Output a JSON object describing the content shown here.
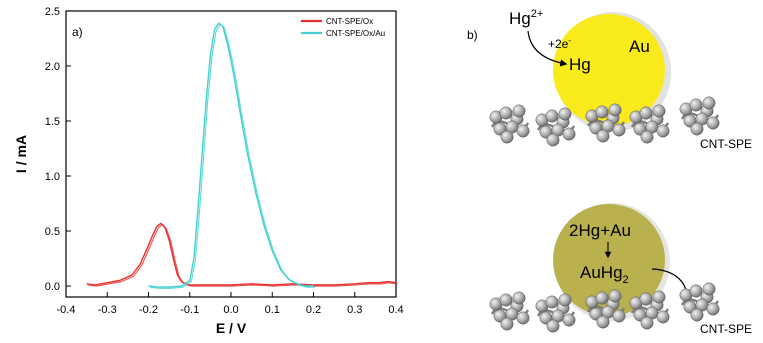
{
  "chart_data": {
    "type": "line",
    "panel_label": "a)",
    "xlabel": "E / V",
    "ylabel": "I / mA",
    "xlim": [
      -0.4,
      0.4
    ],
    "ylim": [
      -0.1,
      2.5
    ],
    "x_ticks": [
      "-0.4",
      "-0.3",
      "-0.2",
      "-0.1",
      "0.0",
      "0.1",
      "0.2",
      "0.3",
      "0.4"
    ],
    "y_ticks": [
      "0.0",
      "0.5",
      "1.0",
      "1.5",
      "2.0",
      "2.5"
    ],
    "grid": false,
    "legend_position": "top-right",
    "series": [
      {
        "name": "CNT-SPE/Ox",
        "color": "#e8302e",
        "x": [
          -0.35,
          -0.33,
          -0.3,
          -0.27,
          -0.24,
          -0.22,
          -0.2,
          -0.19,
          -0.18,
          -0.17,
          -0.16,
          -0.15,
          -0.14,
          -0.13,
          -0.12,
          -0.11,
          -0.1,
          -0.05,
          0.0,
          0.05,
          0.1,
          0.15,
          0.2,
          0.25,
          0.3,
          0.33,
          0.36,
          0.38,
          0.4
        ],
        "y": [
          0.02,
          0.01,
          0.03,
          0.05,
          0.1,
          0.2,
          0.37,
          0.46,
          0.54,
          0.57,
          0.53,
          0.42,
          0.25,
          0.1,
          0.04,
          0.02,
          0.01,
          0.01,
          0.01,
          0.02,
          0.01,
          0.02,
          0.01,
          0.01,
          0.02,
          0.03,
          0.03,
          0.04,
          0.03
        ]
      },
      {
        "name": "CNT-SPE/Ox/Au",
        "color": "#45d0d2",
        "x": [
          -0.2,
          -0.18,
          -0.15,
          -0.12,
          -0.1,
          -0.09,
          -0.08,
          -0.07,
          -0.06,
          -0.05,
          -0.04,
          -0.03,
          -0.02,
          -0.01,
          0.0,
          0.01,
          0.02,
          0.04,
          0.06,
          0.08,
          0.1,
          0.12,
          0.14,
          0.16,
          0.18,
          0.2
        ],
        "y": [
          0.0,
          -0.01,
          -0.01,
          0.0,
          0.05,
          0.25,
          0.7,
          1.2,
          1.7,
          2.1,
          2.33,
          2.39,
          2.36,
          2.22,
          2.05,
          1.85,
          1.62,
          1.2,
          0.85,
          0.55,
          0.32,
          0.15,
          0.06,
          0.02,
          0.0,
          0.0
        ]
      }
    ]
  },
  "scheme": {
    "panel_label": "b)",
    "top": {
      "ion": "Hg",
      "ion_charge": "2+",
      "electrons": "+2e",
      "electrons_sign": "-",
      "product": "Hg",
      "particle_label": "Au",
      "electrode_label": "CNT-SPE",
      "particle_color": "#f9ea1b"
    },
    "bottom": {
      "reaction": "2Hg+Au",
      "product_main": "AuHg",
      "product_sub": "2",
      "electrode_label": "CNT-SPE",
      "particle_color": "#b9b04e"
    }
  }
}
